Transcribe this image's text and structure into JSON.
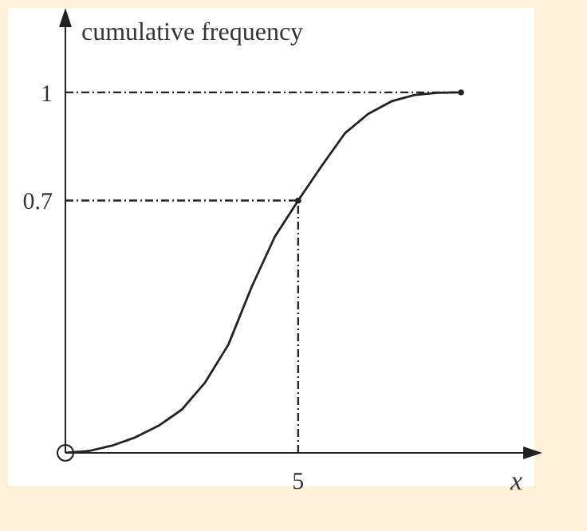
{
  "chart_data": {
    "type": "line",
    "ylabel": "cumulative frequency",
    "xlabel": "x",
    "categories": [
      null,
      null,
      null,
      null,
      null,
      null,
      null,
      null,
      null,
      null,
      "5",
      null,
      null,
      null,
      null,
      null,
      null,
      null
    ],
    "series": [
      {
        "color": "#222222",
        "values": [
          0,
          0.005,
          0.02,
          0.043,
          0.075,
          0.12,
          0.195,
          0.3,
          0.46,
          0.6,
          0.7,
          0.795,
          0.886,
          0.94,
          0.975,
          0.993,
          0.999,
          1
        ]
      }
    ],
    "ylim": [
      0,
      1.19
    ],
    "yticks": [
      0.7,
      1
    ],
    "grid": false,
    "legend": false,
    "marker": "none",
    "line_style": "solid",
    "ref_lines": [
      {
        "axis": "y",
        "value": 0.7,
        "line_style": "dashed",
        "color": "#222222"
      },
      {
        "axis": "y",
        "value": 1,
        "line_style": "dashed",
        "color": "#222222"
      },
      {
        "axis": "x",
        "value": "5",
        "line_style": "dashed",
        "color": "#222222"
      }
    ]
  }
}
